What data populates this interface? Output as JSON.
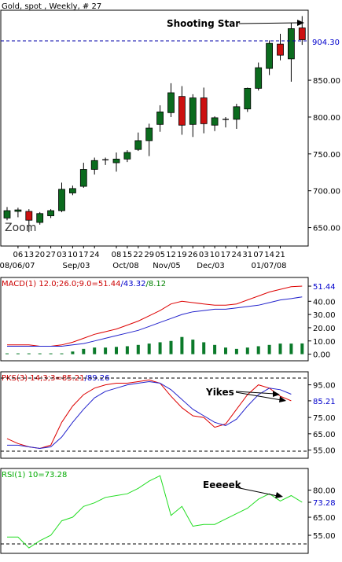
{
  "chart_data": [
    {
      "type": "candlestick",
      "title": "Gold, spot , Weekly, # 27",
      "ylim": [
        625,
        945
      ],
      "yticks": [
        "650.00",
        "700.00",
        "750.00",
        "800.00",
        "850.00"
      ],
      "current_value_label": "904.30",
      "current_value": 904.3,
      "annotation": "Shooting Star",
      "zoom_label": "Zoom",
      "week_labels": [
        "06",
        "13",
        "20",
        "27",
        "03",
        "10",
        "17",
        "24",
        "08",
        "15",
        "22",
        "29",
        "05",
        "12",
        "19",
        "26",
        "03",
        "10",
        "17",
        "24",
        "31",
        "07",
        "14",
        "21"
      ],
      "date_labels": [
        "08/06/07",
        "Sep/03",
        "Oct/08",
        "Nov/05",
        "Dec/03",
        "01/07/08"
      ],
      "candles": [
        {
          "o": 663,
          "h": 678,
          "l": 660,
          "c": 673
        },
        {
          "o": 672,
          "h": 677,
          "l": 664,
          "c": 674
        },
        {
          "o": 672,
          "h": 675,
          "l": 644,
          "c": 660
        },
        {
          "o": 657,
          "h": 671,
          "l": 654,
          "c": 669
        },
        {
          "o": 666,
          "h": 675,
          "l": 663,
          "c": 673
        },
        {
          "o": 673,
          "h": 711,
          "l": 671,
          "c": 702
        },
        {
          "o": 697,
          "h": 707,
          "l": 694,
          "c": 703
        },
        {
          "o": 706,
          "h": 738,
          "l": 704,
          "c": 729
        },
        {
          "o": 729,
          "h": 745,
          "l": 722,
          "c": 741
        },
        {
          "o": 741,
          "h": 745,
          "l": 735,
          "c": 742
        },
        {
          "o": 738,
          "h": 752,
          "l": 726,
          "c": 743
        },
        {
          "o": 743,
          "h": 755,
          "l": 739,
          "c": 752
        },
        {
          "o": 756,
          "h": 779,
          "l": 754,
          "c": 768
        },
        {
          "o": 768,
          "h": 791,
          "l": 747,
          "c": 785
        },
        {
          "o": 790,
          "h": 816,
          "l": 780,
          "c": 807
        },
        {
          "o": 806,
          "h": 846,
          "l": 800,
          "c": 833
        },
        {
          "o": 828,
          "h": 842,
          "l": 776,
          "c": 789
        },
        {
          "o": 790,
          "h": 831,
          "l": 773,
          "c": 826
        },
        {
          "o": 826,
          "h": 840,
          "l": 778,
          "c": 791
        },
        {
          "o": 789,
          "h": 801,
          "l": 781,
          "c": 799
        },
        {
          "o": 796,
          "h": 800,
          "l": 786,
          "c": 797
        },
        {
          "o": 797,
          "h": 818,
          "l": 784,
          "c": 814
        },
        {
          "o": 811,
          "h": 840,
          "l": 807,
          "c": 839
        },
        {
          "o": 839,
          "h": 874,
          "l": 836,
          "c": 867
        },
        {
          "o": 866,
          "h": 904,
          "l": 857,
          "c": 900
        },
        {
          "o": 899,
          "h": 913,
          "l": 877,
          "c": 884
        },
        {
          "o": 879,
          "h": 928,
          "l": 848,
          "c": 920
        },
        {
          "o": 921,
          "h": 937,
          "l": 898,
          "c": 905
        }
      ]
    },
    {
      "type": "line",
      "title": "MACD(1) 12.0;26.0;9.0=51.44",
      "title_parts": [
        "MACD(1) 12.0;26.0;9.0=51.44",
        "/43.32",
        "/8.12"
      ],
      "ylim": [
        -5,
        58
      ],
      "yticks": [
        "0.00",
        "10.00",
        "20.00",
        "30.00",
        "40.00",
        "51.44"
      ],
      "series": [
        {
          "name": "51.44",
          "values": [
            7,
            7,
            7,
            6,
            6,
            7,
            9,
            12,
            15,
            17,
            19,
            22,
            25,
            29,
            33,
            38,
            40,
            39,
            38,
            37,
            37,
            38,
            41,
            44,
            47,
            49,
            51,
            51.44
          ]
        },
        {
          "name": "43.32",
          "values": [
            6,
            6,
            6,
            6,
            6,
            6,
            7,
            8,
            10,
            12,
            14,
            16,
            18,
            21,
            24,
            27,
            30,
            32,
            33,
            34,
            34,
            35,
            36,
            37,
            39,
            41,
            42,
            43.32
          ]
        }
      ],
      "histogram": [
        0.6,
        0.6,
        0.6,
        0.6,
        0.6,
        0.6,
        2,
        4,
        5,
        5,
        5.5,
        6,
        7,
        8,
        9,
        10,
        13,
        11,
        9,
        7,
        5,
        4,
        5,
        6,
        7,
        8,
        8,
        8.12
      ]
    },
    {
      "type": "line",
      "title": "PKS(3) 14;3;3=85.21",
      "title_parts": [
        "PKS(3) 14;3;3=85.21",
        "/89.26"
      ],
      "ylim": [
        50,
        103
      ],
      "yticks": [
        "55.00",
        "65.00",
        "75.00",
        "85.21",
        "95.00"
      ],
      "annotation": "Yikes",
      "series": [
        {
          "name": "85.21",
          "values": [
            62,
            59,
            57,
            56,
            58,
            72,
            82,
            89,
            93,
            95,
            96,
            96,
            97,
            98,
            96,
            88,
            81,
            76,
            75,
            69,
            71,
            80,
            89,
            95,
            93,
            88,
            85.21
          ]
        },
        {
          "name": "89.26",
          "values": [
            58,
            58,
            57,
            56,
            57,
            63,
            72,
            80,
            87,
            91,
            93,
            95,
            96,
            97,
            96,
            92,
            86,
            80,
            76,
            72,
            70,
            74,
            82,
            89,
            93,
            92,
            89.26
          ]
        }
      ]
    },
    {
      "type": "line",
      "title": "RSI(1) 10=73.28",
      "ylim": [
        45,
        92
      ],
      "yticks": [
        "55.00",
        "65.00",
        "73.28",
        "80.00"
      ],
      "annotation": "Eeeeek",
      "series": [
        {
          "name": "73.28",
          "values": [
            54,
            54,
            48,
            52,
            55,
            63,
            65,
            71,
            73,
            76,
            77,
            78,
            81,
            85,
            88,
            66,
            71,
            60,
            61,
            61,
            64,
            67,
            70,
            75,
            78,
            74,
            77,
            73.28
          ]
        }
      ]
    }
  ]
}
